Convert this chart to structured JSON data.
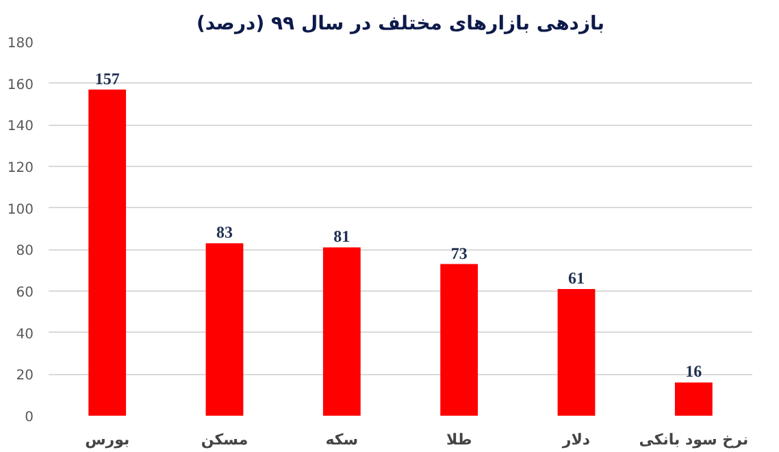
{
  "chart_data": {
    "type": "bar",
    "title": "بازدهی بازارهای مختلف در سال ۹۹ (درصد)",
    "categories": [
      "بورس",
      "مسکن",
      "سکه",
      "طلا",
      "دلار",
      "نرخ سود بانکی"
    ],
    "values": [
      157,
      83,
      81,
      73,
      61,
      16
    ],
    "color": "#ff0000",
    "ylim": [
      0,
      180
    ],
    "yticks": [
      0,
      20,
      40,
      60,
      80,
      100,
      120,
      140,
      160,
      180
    ],
    "grid": "y",
    "data_labels": true
  }
}
